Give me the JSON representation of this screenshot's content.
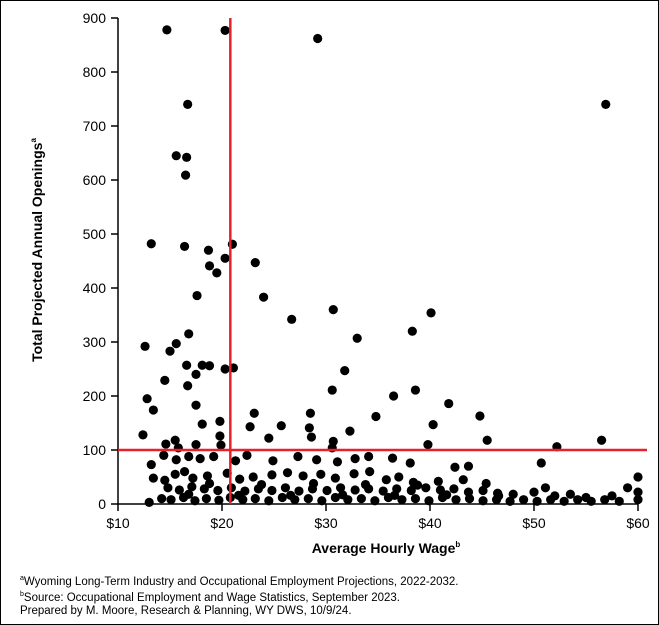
{
  "chart_data": {
    "type": "scatter",
    "xlabel": "Average Hourly Wage",
    "xlabel_sup": "b",
    "ylabel": "Total Projected Annual Openings",
    "ylabel_sup": "a",
    "xlim": [
      10,
      60
    ],
    "ylim": [
      0,
      900
    ],
    "x_ticks": [
      10,
      20,
      30,
      40,
      50,
      60
    ],
    "x_tick_labels": [
      "$10",
      "$20",
      "$30",
      "$40",
      "$50",
      "$60"
    ],
    "y_ticks": [
      0,
      100,
      200,
      300,
      400,
      500,
      600,
      700,
      800,
      900
    ],
    "y_tick_labels": [
      "0",
      "100",
      "200",
      "300",
      "400",
      "500",
      "600",
      "700",
      "800",
      "900"
    ],
    "grid": false,
    "reference_lines": {
      "x": 20.8,
      "y": 100,
      "color": "#e8202a"
    },
    "marker_color": "#000000",
    "points": [
      [
        14.7,
        878
      ],
      [
        20.3,
        877
      ],
      [
        29.2,
        862
      ],
      [
        16.7,
        740
      ],
      [
        56.9,
        740
      ],
      [
        15.6,
        645
      ],
      [
        16.6,
        642
      ],
      [
        16.5,
        609
      ],
      [
        13.2,
        482
      ],
      [
        16.4,
        477
      ],
      [
        21,
        481
      ],
      [
        18.7,
        470
      ],
      [
        20.3,
        455
      ],
      [
        18.8,
        441
      ],
      [
        19.5,
        428
      ],
      [
        23.2,
        447
      ],
      [
        17.6,
        386
      ],
      [
        24,
        383
      ],
      [
        30.7,
        360
      ],
      [
        26.7,
        342
      ],
      [
        33,
        307
      ],
      [
        38.3,
        320
      ],
      [
        40.1,
        354
      ],
      [
        16.8,
        315
      ],
      [
        12.6,
        292
      ],
      [
        15.6,
        297
      ],
      [
        15,
        283
      ],
      [
        16.6,
        257
      ],
      [
        18.1,
        257
      ],
      [
        18.8,
        256
      ],
      [
        20.3,
        250
      ],
      [
        21.1,
        252
      ],
      [
        17.5,
        240
      ],
      [
        14.5,
        229
      ],
      [
        16.7,
        219
      ],
      [
        31.8,
        247
      ],
      [
        30.6,
        211
      ],
      [
        36.5,
        200
      ],
      [
        38.6,
        211
      ],
      [
        12.8,
        195
      ],
      [
        13.4,
        174
      ],
      [
        17.5,
        183
      ],
      [
        19.8,
        153
      ],
      [
        18.1,
        148
      ],
      [
        22.7,
        143
      ],
      [
        23.1,
        168
      ],
      [
        25.7,
        145
      ],
      [
        28.5,
        168
      ],
      [
        28.4,
        141
      ],
      [
        34.8,
        162
      ],
      [
        40.3,
        147
      ],
      [
        41.8,
        186
      ],
      [
        44.8,
        163
      ],
      [
        12.4,
        128
      ],
      [
        14.6,
        111
      ],
      [
        15.5,
        118
      ],
      [
        15.8,
        104
      ],
      [
        17.5,
        110
      ],
      [
        19.8,
        126
      ],
      [
        19.9,
        109
      ],
      [
        24.5,
        122
      ],
      [
        28.6,
        124
      ],
      [
        30.7,
        116
      ],
      [
        30.6,
        104
      ],
      [
        32.3,
        135
      ],
      [
        39.8,
        110
      ],
      [
        45.5,
        118
      ],
      [
        52.2,
        106
      ],
      [
        56.5,
        118
      ],
      [
        13.2,
        73
      ],
      [
        14.4,
        90
      ],
      [
        15.6,
        82
      ],
      [
        16.8,
        88
      ],
      [
        17.9,
        84
      ],
      [
        19.2,
        88
      ],
      [
        21.3,
        80
      ],
      [
        22.4,
        90
      ],
      [
        24.9,
        80
      ],
      [
        27.3,
        88
      ],
      [
        29.1,
        82
      ],
      [
        31.1,
        78
      ],
      [
        32.8,
        84
      ],
      [
        34.1,
        88
      ],
      [
        36.4,
        85
      ],
      [
        38.1,
        76
      ],
      [
        42.4,
        68
      ],
      [
        43.7,
        70
      ],
      [
        50.7,
        76
      ],
      [
        13.4,
        48
      ],
      [
        14.5,
        44
      ],
      [
        15.5,
        55
      ],
      [
        16.4,
        60
      ],
      [
        17.2,
        48
      ],
      [
        18.6,
        52
      ],
      [
        20.5,
        57
      ],
      [
        21.7,
        46
      ],
      [
        23,
        50
      ],
      [
        24.8,
        54
      ],
      [
        26.3,
        58
      ],
      [
        27.8,
        52
      ],
      [
        29.5,
        55
      ],
      [
        30.9,
        48
      ],
      [
        32.7,
        56
      ],
      [
        34.2,
        60
      ],
      [
        35.8,
        45
      ],
      [
        37,
        50
      ],
      [
        38.4,
        40
      ],
      [
        40.8,
        42
      ],
      [
        43.2,
        45
      ],
      [
        45.4,
        38
      ],
      [
        51.1,
        30
      ],
      [
        60,
        50
      ],
      [
        14.8,
        30
      ],
      [
        15.9,
        26
      ],
      [
        17.1,
        32
      ],
      [
        18.3,
        28
      ],
      [
        19.6,
        25
      ],
      [
        20.9,
        30
      ],
      [
        22.2,
        24
      ],
      [
        23.5,
        28
      ],
      [
        24.8,
        25
      ],
      [
        26.1,
        30
      ],
      [
        27.4,
        24
      ],
      [
        28.7,
        28
      ],
      [
        30.1,
        25
      ],
      [
        31.4,
        30
      ],
      [
        32.8,
        26
      ],
      [
        34.1,
        28
      ],
      [
        35.5,
        24
      ],
      [
        36.8,
        28
      ],
      [
        38.2,
        25
      ],
      [
        39.6,
        30
      ],
      [
        41,
        26
      ],
      [
        42.3,
        28
      ],
      [
        43.7,
        22
      ],
      [
        45.1,
        25
      ],
      [
        46.5,
        20
      ],
      [
        48,
        18
      ],
      [
        50,
        22
      ],
      [
        52,
        15
      ],
      [
        53.5,
        18
      ],
      [
        55,
        12
      ],
      [
        57.5,
        15
      ],
      [
        59,
        30
      ],
      [
        60,
        22
      ],
      [
        14.2,
        10
      ],
      [
        15.1,
        8
      ],
      [
        16.3,
        12
      ],
      [
        17.4,
        6
      ],
      [
        18.5,
        10
      ],
      [
        19.7,
        7
      ],
      [
        20.8,
        12
      ],
      [
        22,
        8
      ],
      [
        23.2,
        10
      ],
      [
        24.5,
        6
      ],
      [
        25.8,
        12
      ],
      [
        27,
        8
      ],
      [
        28.3,
        10
      ],
      [
        29.6,
        6
      ],
      [
        30.9,
        12
      ],
      [
        32.1,
        8
      ],
      [
        33.4,
        10
      ],
      [
        34.7,
        6
      ],
      [
        36,
        12
      ],
      [
        37.3,
        8
      ],
      [
        38.6,
        10
      ],
      [
        39.9,
        6
      ],
      [
        41.2,
        12
      ],
      [
        42.5,
        8
      ],
      [
        43.8,
        10
      ],
      [
        45.1,
        6
      ],
      [
        46.4,
        8
      ],
      [
        47.7,
        5
      ],
      [
        49,
        8
      ],
      [
        50.3,
        5
      ],
      [
        51.6,
        8
      ],
      [
        52.9,
        5
      ],
      [
        54.2,
        8
      ],
      [
        55.5,
        5
      ],
      [
        56.8,
        8
      ],
      [
        58.2,
        5
      ],
      [
        13,
        3
      ],
      [
        60,
        8
      ],
      [
        16.8,
        18
      ],
      [
        21.6,
        16
      ],
      [
        26.6,
        16
      ],
      [
        31.6,
        17
      ],
      [
        36.6,
        16
      ],
      [
        41.6,
        17
      ],
      [
        46.6,
        15
      ],
      [
        18.8,
        38
      ],
      [
        23.8,
        36
      ],
      [
        28.8,
        38
      ],
      [
        33.8,
        36
      ],
      [
        38.8,
        35
      ]
    ]
  },
  "footnotes": {
    "a": {
      "mark": "a",
      "text": "Wyoming Long-Term Industry and Occupational Employment Projections, 2022-2032."
    },
    "b": {
      "mark": "b",
      "text": "Source: Occupational Employment and Wage Statistics, September 2023."
    },
    "credit": "Prepared by M. Moore, Research & Planning, WY DWS, 10/9/24."
  }
}
